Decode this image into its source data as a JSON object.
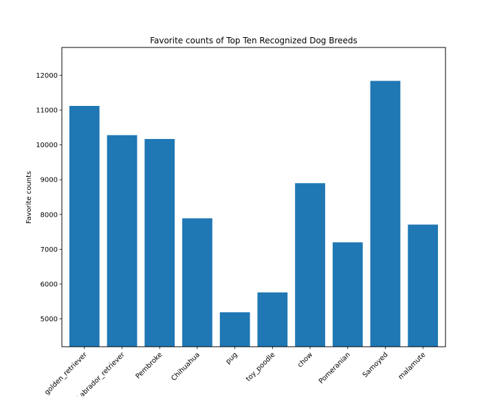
{
  "chart_data": {
    "type": "bar",
    "title": "Favorite counts of Top Ten Recognized Dog Breeds",
    "xlabel": "",
    "ylabel": "Favorite counts",
    "categories": [
      "golden_retriever",
      "Labrador_retriever",
      "Pembroke",
      "Chihuahua",
      "pug",
      "toy_poodle",
      "chow",
      "Pomeranian",
      "Samoyed",
      "malamute"
    ],
    "values": [
      11120,
      10280,
      10170,
      7890,
      5190,
      5760,
      8900,
      7200,
      11840,
      7710
    ],
    "ylim": [
      4200,
      12800
    ],
    "yticks": [
      5000,
      6000,
      7000,
      8000,
      9000,
      10000,
      11000,
      12000
    ],
    "xtick_rotation": 45,
    "bar_color": "#1f77b4",
    "grid": false,
    "legend": "none"
  }
}
